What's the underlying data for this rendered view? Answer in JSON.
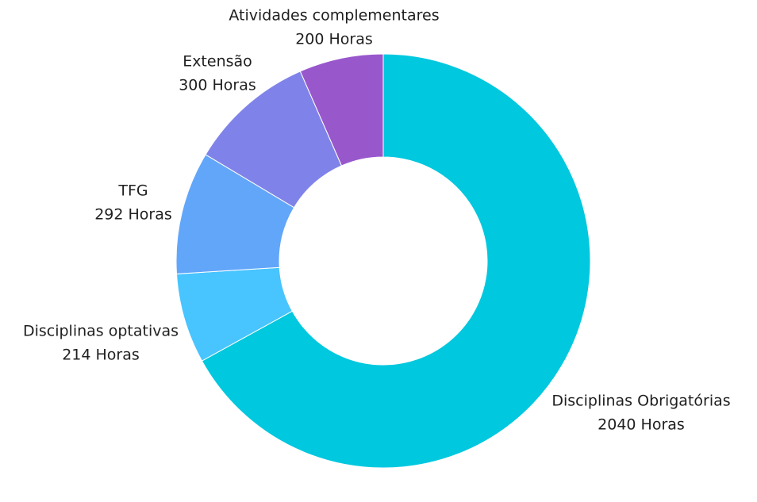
{
  "chart_data": {
    "type": "pie",
    "variant": "donut",
    "title": "",
    "unit": "Horas",
    "slices": [
      {
        "name": "Disciplinas Obrigatórias",
        "value": 2040,
        "value_label": "2040 Horas",
        "color": "#00c8de"
      },
      {
        "name": "Disciplinas optativas",
        "value": 214,
        "value_label": "214 Horas",
        "color": "#48c4ff"
      },
      {
        "name": "TFG",
        "value": 292,
        "value_label": "292 Horas",
        "color": "#62a6f9"
      },
      {
        "name": "Extensão",
        "value": 300,
        "value_label": "300 Horas",
        "color": "#7f83e9"
      },
      {
        "name": "Atividades complementares",
        "value": 200,
        "value_label": "200 Horas",
        "color": "#9858cc"
      }
    ],
    "legend": "none"
  }
}
